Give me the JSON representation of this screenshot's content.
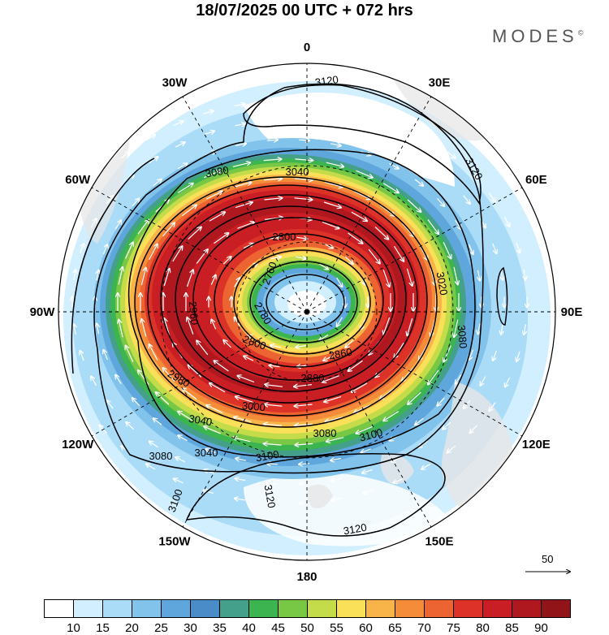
{
  "title": "18/07/2025  00 UTC  + 072 hrs",
  "brand": "MODES",
  "brand_mark": "©",
  "map": {
    "projection": "polar-stereographic-south",
    "longitude_labels": [
      {
        "text": "0",
        "lon": 0
      },
      {
        "text": "30E",
        "lon": 30
      },
      {
        "text": "60E",
        "lon": 60
      },
      {
        "text": "90E",
        "lon": 90
      },
      {
        "text": "120E",
        "lon": 120
      },
      {
        "text": "150E",
        "lon": 150
      },
      {
        "text": "180",
        "lon": 180
      },
      {
        "text": "150W",
        "lon": -150
      },
      {
        "text": "120W",
        "lon": -120
      },
      {
        "text": "90W",
        "lon": -90
      },
      {
        "text": "60W",
        "lon": -60
      },
      {
        "text": "30W",
        "lon": -30
      }
    ],
    "contour_labels": [
      "3120",
      "3120",
      "3080",
      "3040",
      "2800",
      "3020",
      "3080",
      "2760",
      "2780",
      "2800",
      "2860",
      "2880",
      "2960",
      "2980",
      "3000",
      "3040",
      "3080",
      "3100",
      "3100",
      "3080",
      "3040",
      "3120",
      "3100",
      "3120"
    ],
    "contour_levels_m": [
      2760,
      2780,
      2800,
      2860,
      2880,
      2960,
      2980,
      3000,
      3020,
      3040,
      3080,
      3100,
      3120
    ],
    "vector_reference": "50",
    "colors": {
      "land": "#e6e6e6",
      "contour": "#000000",
      "vectors": "#ffffff"
    }
  },
  "colorbar": {
    "labels": [
      "10",
      "15",
      "20",
      "25",
      "30",
      "35",
      "40",
      "45",
      "50",
      "55",
      "60",
      "65",
      "70",
      "75",
      "80",
      "85",
      "90"
    ],
    "colors": [
      "#ffffff",
      "#d2efff",
      "#aadcf8",
      "#82c3ec",
      "#5ea6dc",
      "#4a8cc8",
      "#44a08a",
      "#3cb450",
      "#78c846",
      "#c4dc4a",
      "#fae058",
      "#f8b448",
      "#f48c3a",
      "#ec6432",
      "#dc3228",
      "#c81e24",
      "#b01820",
      "#901418"
    ]
  }
}
